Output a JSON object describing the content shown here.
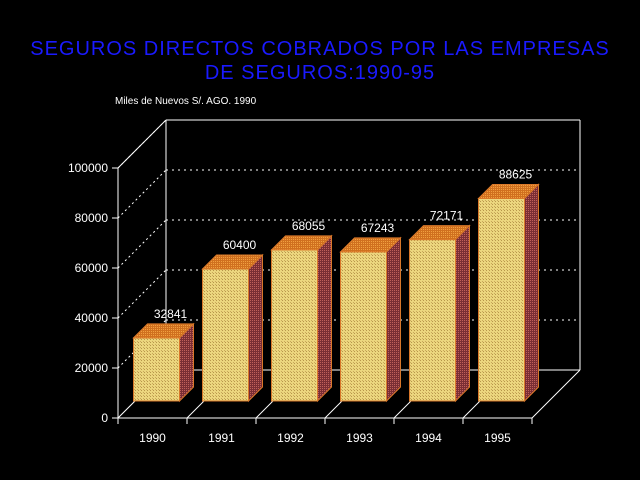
{
  "chart_data": {
    "type": "bar",
    "title_line1": "SEGUROS DIRECTOS COBRADOS POR LAS EMPRESAS",
    "title_line2": "DE SEGUROS:1990-95",
    "unit_label": "Miles de Nuevos S/. AGO. 1990",
    "categories": [
      "1990",
      "1991",
      "1992",
      "1993",
      "1994",
      "1995"
    ],
    "values": [
      32841,
      60400,
      68055,
      67243,
      72171,
      88625
    ],
    "data_labels": [
      "32841",
      "60400",
      "68055",
      "67243",
      "72171",
      "88625"
    ],
    "y_ticks": [
      "0",
      "20000",
      "40000",
      "60000",
      "80000",
      "100000"
    ],
    "ylim": [
      0,
      100000
    ],
    "grid": true,
    "style": "3d",
    "colors": {
      "title": "#1a1aff",
      "bar_front": "#e8cf7a",
      "bar_top": "#d9782a",
      "bar_side": "#8a3b3b",
      "axis": "#ffffff"
    }
  }
}
